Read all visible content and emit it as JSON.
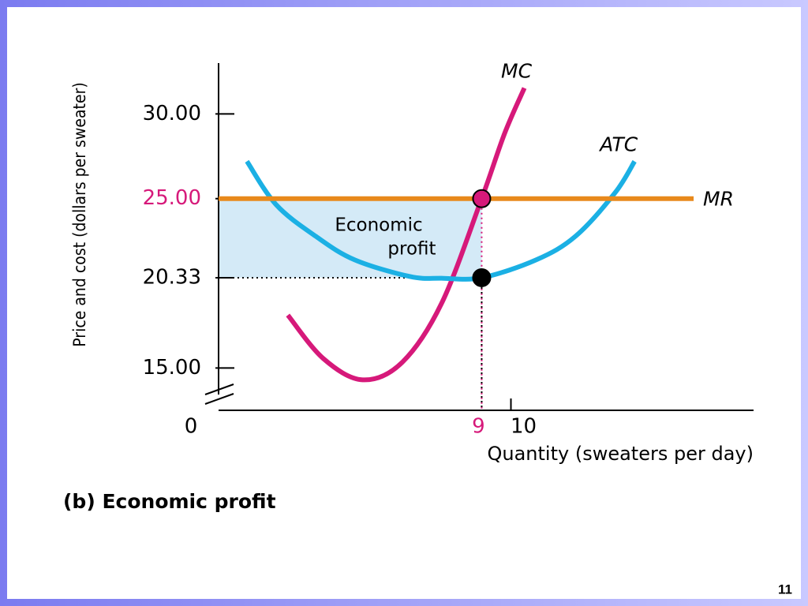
{
  "chart_data": {
    "type": "line",
    "title": "(b) Economic profit",
    "xlabel": "Quantity (sweaters per day)",
    "ylabel": "Price and cost (dollars per sweater)",
    "page_number": "11",
    "xlim": [
      0,
      18.3
    ],
    "ylim": [
      12.5,
      33
    ],
    "xticks": [
      0,
      9,
      10
    ],
    "yticks": [
      {
        "value": 15,
        "label": "15.00"
      },
      {
        "value": 20.33,
        "label": "20.33"
      },
      {
        "value": 25,
        "label": "25.00"
      },
      {
        "value": 30,
        "label": "30.00"
      }
    ],
    "series": [
      {
        "name": "MC",
        "color": "#d6197a",
        "x": [
          2.37,
          3.58,
          4.93,
          6.28,
          7.63,
          9,
          9.78,
          10.46
        ],
        "values": [
          18.12,
          15.56,
          14.3,
          15.33,
          18.82,
          25,
          28.83,
          31.53
        ]
      },
      {
        "name": "ATC",
        "color": "#1bb0e4",
        "x": [
          0.97,
          1.97,
          3.32,
          4.66,
          6.55,
          7.63,
          9,
          10.86,
          12.21,
          13.56,
          14.23
        ],
        "values": [
          27.2,
          24.64,
          22.78,
          21.38,
          20.4,
          20.3,
          20.33,
          21.38,
          22.78,
          25.34,
          27.2
        ]
      },
      {
        "name": "MR",
        "color": "#e8891c",
        "x": [
          0,
          16.25
        ],
        "values": [
          25,
          25
        ]
      }
    ],
    "profit_area": {
      "label_lines": [
        "Economic",
        "profit"
      ],
      "x": [
        0,
        9
      ],
      "y": [
        20.33,
        25
      ],
      "color": "#d4eaf7"
    },
    "points": [
      {
        "x": 9,
        "y": 25,
        "color": "#d6197a",
        "mark_ticks": true
      },
      {
        "x": 9,
        "y": 20.33,
        "color": "#000000",
        "mark_ticks": false
      }
    ]
  }
}
